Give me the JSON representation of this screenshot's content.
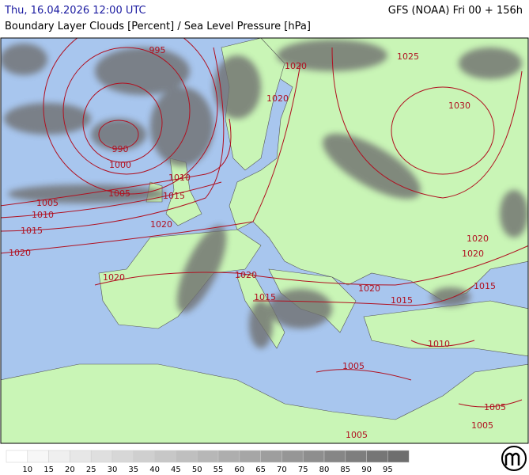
{
  "header": {
    "datetime": "Thu, 16.04.2026 12:00 UTC",
    "model": "GFS (NOAA) Fri 00 + 156h",
    "title": "Boundary Layer Clouds [Percent] / Sea Level Pressure [hPa]"
  },
  "map": {
    "isobar_labels": [
      "995",
      "1020",
      "1025",
      "1020",
      "1030",
      "990",
      "1000",
      "1010",
      "1005",
      "1015",
      "1005",
      "1010",
      "1020",
      "1015",
      "1020",
      "1020",
      "1020",
      "1020",
      "1020",
      "1015",
      "1020",
      "1015",
      "1015",
      "1010",
      "1005",
      "1005",
      "1005",
      "1005"
    ]
  },
  "legend": {
    "values": [
      10,
      15,
      20,
      25,
      30,
      35,
      40,
      45,
      50,
      55,
      60,
      65,
      70,
      75,
      80,
      85,
      90,
      95
    ]
  }
}
